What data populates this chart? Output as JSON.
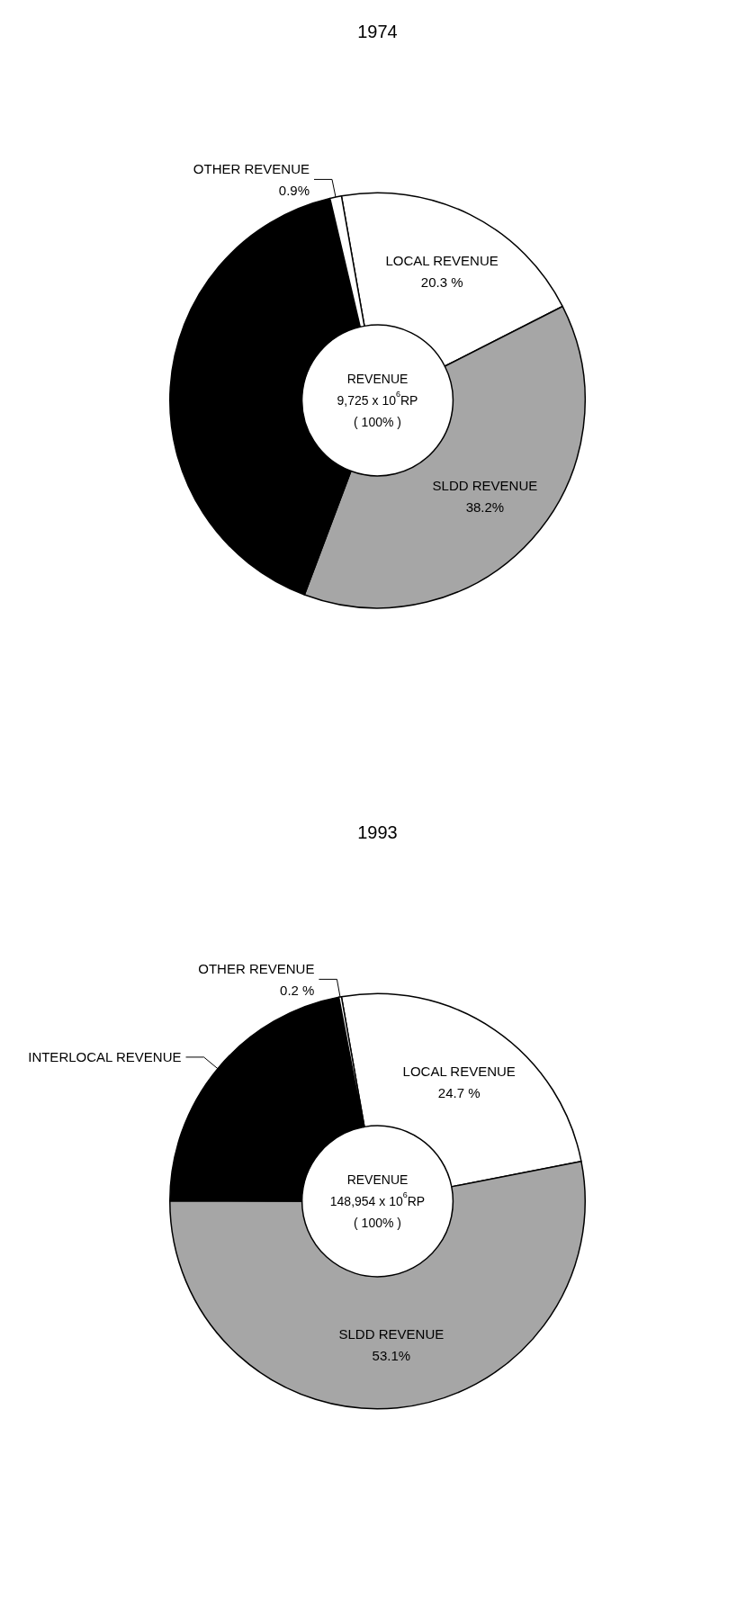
{
  "chart_data": [
    {
      "type": "donut",
      "title": "1974",
      "categories": [
        "LOCAL REVENUE",
        "SLDD REVENUE",
        null,
        "OTHER REVENUE"
      ],
      "values": [
        20.3,
        38.2,
        40.6,
        0.9
      ],
      "value_labels": [
        "20.3 %",
        "38.2%",
        null,
        "0.9%"
      ],
      "colors": [
        "#ffffff",
        "#a6a6a6",
        "#000000",
        "#ffffff"
      ],
      "annotations": [
        "REVENUE",
        "9,725 x 10$^{6}$RP",
        "( 100% )"
      ]
    },
    {
      "type": "donut",
      "title": "1993",
      "categories": [
        "LOCAL REVENUE",
        "SLDD REVENUE",
        "INTERLOCAL REVENUE",
        "OTHER REVENUE"
      ],
      "values": [
        24.7,
        53.1,
        22.0,
        0.2
      ],
      "value_labels": [
        "24.7 %",
        "53.1%",
        null,
        "0.2 %"
      ],
      "colors": [
        "#ffffff",
        "#a6a6a6",
        "#000000",
        "#ffffff"
      ],
      "annotations": [
        "REVENUE",
        "148,954 x 10$^{6}$RP",
        "( 100% )"
      ]
    }
  ]
}
